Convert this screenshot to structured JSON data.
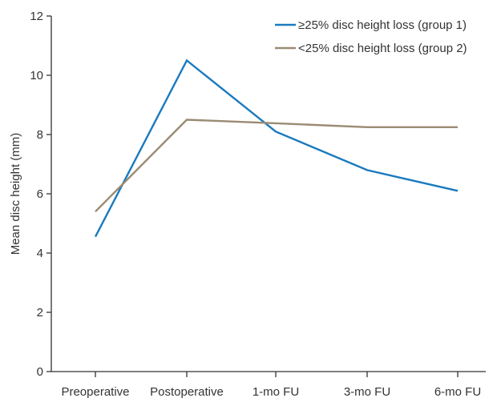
{
  "chart_data": {
    "type": "line",
    "categories": [
      "Preoperative",
      "Postoperative",
      "1-mo FU",
      "3-mo FU",
      "6-mo FU"
    ],
    "series": [
      {
        "name": "≥25% disc height loss (group 1)",
        "values": [
          4.55,
          10.5,
          8.1,
          6.8,
          6.1
        ],
        "color": "#1a7abf"
      },
      {
        "name": "<25% disc height loss (group 2)",
        "values": [
          5.4,
          8.5,
          8.38,
          8.25,
          8.25
        ],
        "color": "#9a8b72"
      }
    ],
    "title": "",
    "xlabel": "",
    "ylabel": "Mean disc height (mm)",
    "ylim": [
      0,
      12
    ],
    "yticks": [
      0,
      2,
      4,
      6,
      8,
      10,
      12
    ],
    "grid": false,
    "legend_position": "top-right"
  }
}
